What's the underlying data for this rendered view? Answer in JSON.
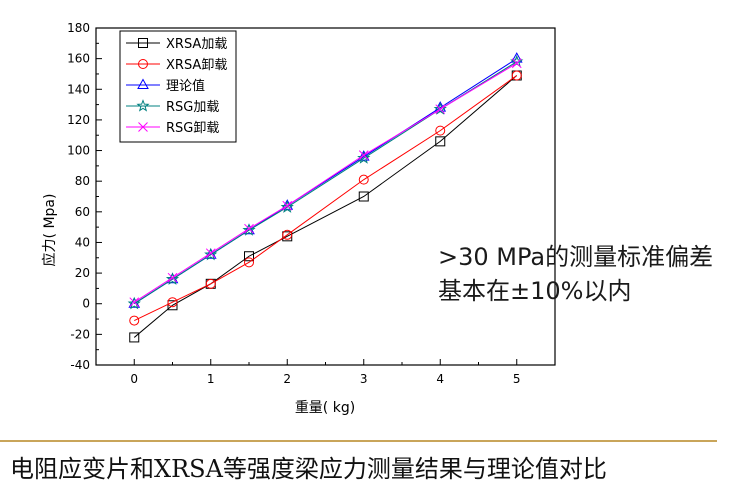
{
  "chart_data": {
    "type": "line",
    "xlabel": "重量( kg)",
    "ylabel": "应力( Mpa)",
    "xlim": [
      -0.5,
      5.5
    ],
    "ylim": [
      -40,
      180
    ],
    "xticks": [
      0,
      1,
      2,
      3,
      4,
      5
    ],
    "yticks": [
      -40,
      -20,
      0,
      20,
      40,
      60,
      80,
      100,
      120,
      140,
      160,
      180
    ],
    "grid": false,
    "legend_position": "top-left",
    "series": [
      {
        "name": "XRSA加载",
        "marker": "square",
        "color": "#000000",
        "x": [
          0,
          0.5,
          1,
          1.5,
          2,
          3,
          4,
          5
        ],
        "y": [
          -22,
          -1,
          13,
          31,
          44,
          70,
          106,
          149
        ]
      },
      {
        "name": "XRSA卸载",
        "marker": "circle",
        "color": "#ff0000",
        "x": [
          0,
          0.5,
          1,
          1.5,
          2,
          3,
          4,
          5
        ],
        "y": [
          -11,
          1,
          13,
          27,
          45,
          81,
          113,
          149
        ]
      },
      {
        "name": "理论值",
        "marker": "triangle",
        "color": "#0000ff",
        "x": [
          0,
          0.5,
          1,
          1.5,
          2,
          3,
          4,
          5
        ],
        "y": [
          0,
          16,
          32,
          48,
          64,
          96,
          128,
          160
        ]
      },
      {
        "name": "RSG加载",
        "marker": "star",
        "color": "#008080",
        "x": [
          0,
          0.5,
          1,
          1.5,
          2,
          3,
          4,
          5
        ],
        "y": [
          0,
          16,
          32,
          48,
          63,
          95,
          127,
          158
        ]
      },
      {
        "name": "RSG卸载",
        "marker": "x",
        "color": "#ff00ff",
        "x": [
          0,
          0.5,
          1,
          1.5,
          2,
          3,
          4,
          5
        ],
        "y": [
          1,
          17,
          33,
          49,
          64,
          97,
          127,
          157
        ]
      }
    ]
  },
  "annotation": {
    "line1": ">30 MPa的测量标准偏差",
    "line2": "基本在±10%以内"
  },
  "caption": "电阻应变片和XRSA等强度梁应力测量结果与理论值对比"
}
